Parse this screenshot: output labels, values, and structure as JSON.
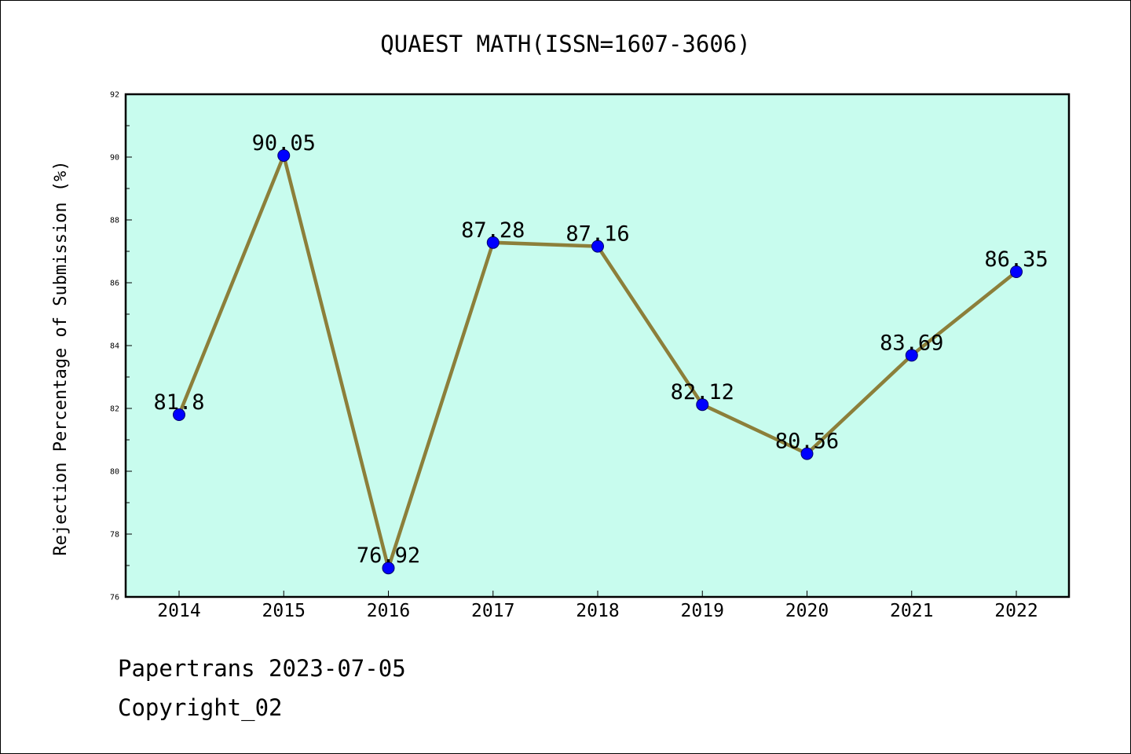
{
  "chart_data": {
    "type": "line",
    "title": "QUAEST MATH(ISSN=1607-3606)",
    "xlabel": "",
    "ylabel": "Rejection Percentage of Submission (%)",
    "categories": [
      "2014",
      "2015",
      "2016",
      "2017",
      "2018",
      "2019",
      "2020",
      "2021",
      "2022"
    ],
    "series": [
      {
        "values": [
          81.8,
          90.05,
          76.92,
          87.28,
          87.16,
          82.12,
          80.56,
          83.69,
          86.35
        ],
        "labels": [
          "81.8",
          "90.05",
          "76.92",
          "87.28",
          "87.16",
          "82.12",
          "80.56",
          "83.69",
          "86.35"
        ]
      }
    ],
    "ylim": [
      76,
      92
    ],
    "yticks": [
      76,
      78,
      80,
      82,
      84,
      86,
      88,
      90,
      92
    ],
    "grid": false,
    "legend": "none",
    "colors": {
      "plot_background": "#c8fcee",
      "line": "#8c7f3a",
      "marker": "#0000ff"
    }
  },
  "footer": {
    "line1": "Papertrans 2023-07-05",
    "line2": "Copyright_02"
  }
}
